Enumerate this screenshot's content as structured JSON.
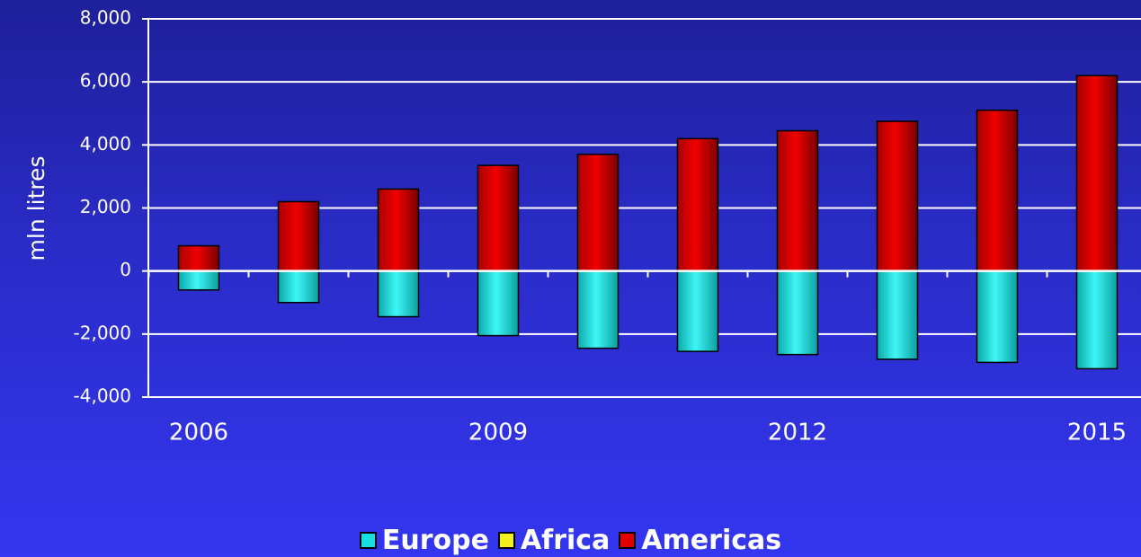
{
  "chart_data": {
    "type": "bar",
    "categories": [
      "2006",
      "2007",
      "2008",
      "2009",
      "2010",
      "2011",
      "2012",
      "2013",
      "2014",
      "2015"
    ],
    "x_tick_labels": [
      "2006",
      "",
      "",
      "2009",
      "",
      "",
      "2012",
      "",
      "",
      "2015"
    ],
    "series": [
      {
        "name": "Europe",
        "color": "#16e0e0",
        "values": [
          -600,
          -1000,
          -1450,
          -2050,
          -2450,
          -2550,
          -2650,
          -2800,
          -2900,
          -3100
        ]
      },
      {
        "name": "Africa",
        "color": "#f2f21a",
        "values": [
          0,
          0,
          0,
          0,
          0,
          0,
          0,
          0,
          0,
          0
        ]
      },
      {
        "name": "Americas",
        "color": "#e00000",
        "values": [
          800,
          2200,
          2600,
          3350,
          3700,
          4200,
          4450,
          4750,
          5100,
          6200
        ]
      }
    ],
    "ylabel": "mln litres",
    "ylim": [
      -4000,
      8000
    ],
    "yticks": [
      -4000,
      -2000,
      0,
      2000,
      4000,
      6000,
      8000
    ],
    "ytick_labels": [
      "-4,000",
      "-2,000",
      "0",
      "2,000",
      "4,000",
      "6,000",
      "8,000"
    ],
    "grid": true,
    "legend_position": "bottom",
    "stacked": true
  }
}
